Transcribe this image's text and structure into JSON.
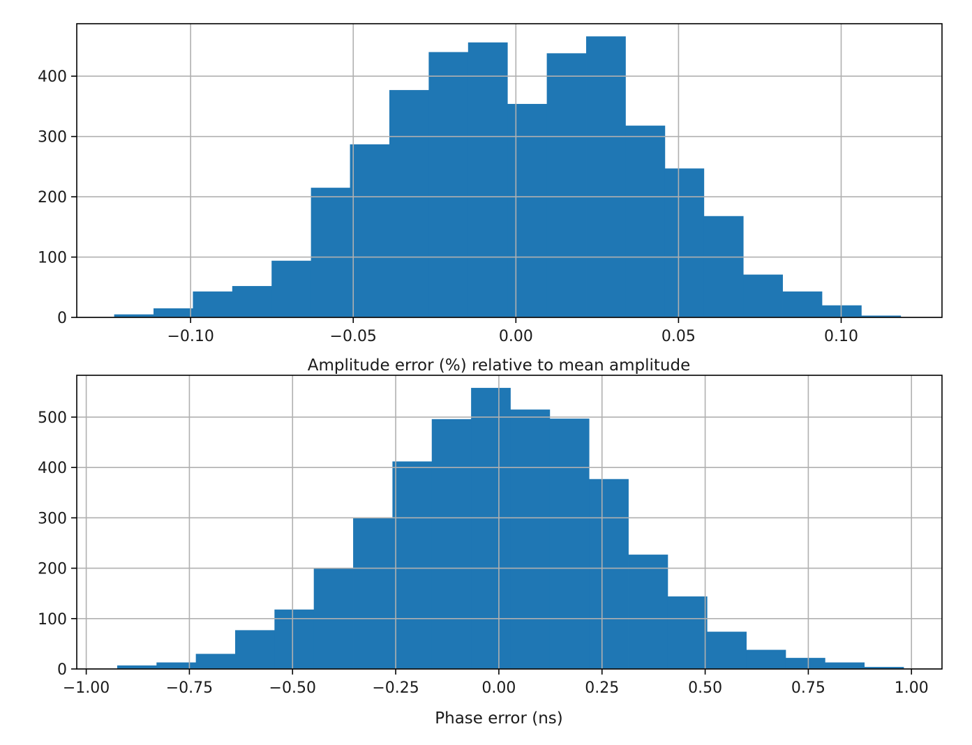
{
  "chart_data": [
    {
      "type": "bar",
      "subtype": "histogram",
      "color": "#1f77b4",
      "title": "",
      "xlabel": "Amplitude error (%) relative to mean amplitude",
      "ylabel": "",
      "xlim": [
        -0.135,
        0.131
      ],
      "ylim": [
        0,
        487
      ],
      "grid": true,
      "xticks": [
        -0.1,
        -0.05,
        0.0,
        0.05,
        0.1
      ],
      "xtick_labels": [
        "−0.10",
        "−0.05",
        "0.00",
        "0.05",
        "0.10"
      ],
      "yticks": [
        0,
        100,
        200,
        300,
        400
      ],
      "ytick_labels": [
        "0",
        "100",
        "200",
        "300",
        "400"
      ],
      "bin_edges": [
        -0.1235,
        -0.1114,
        -0.0993,
        -0.0872,
        -0.0751,
        -0.063,
        -0.051,
        -0.0389,
        -0.0268,
        -0.0147,
        -0.0026,
        0.0095,
        0.0216,
        0.0337,
        0.0458,
        0.0578,
        0.0699,
        0.082,
        0.0941,
        0.1062,
        0.1183
      ],
      "values": [
        5,
        15,
        43,
        52,
        94,
        215,
        287,
        377,
        440,
        456,
        354,
        438,
        466,
        318,
        247,
        168,
        71,
        43,
        20,
        3
      ]
    },
    {
      "type": "bar",
      "subtype": "histogram",
      "color": "#1f77b4",
      "title": "",
      "xlabel": "Phase error (ns)",
      "ylabel": "",
      "xlim": [
        -1.023,
        1.074
      ],
      "ylim": [
        0,
        583
      ],
      "grid": true,
      "xticks": [
        -1.0,
        -0.75,
        -0.5,
        -0.25,
        0.0,
        0.25,
        0.5,
        0.75,
        1.0
      ],
      "xtick_labels": [
        "−1.00",
        "−0.75",
        "−0.50",
        "−0.25",
        "0.00",
        "0.25",
        "0.50",
        "0.75",
        "1.00"
      ],
      "yticks": [
        0,
        100,
        200,
        300,
        400,
        500
      ],
      "ytick_labels": [
        "0",
        "100",
        "200",
        "300",
        "400",
        "500"
      ],
      "bin_edges": [
        -0.925,
        -0.8297,
        -0.7344,
        -0.6391,
        -0.5438,
        -0.4485,
        -0.3532,
        -0.2579,
        -0.1626,
        -0.0673,
        0.028,
        0.1233,
        0.2186,
        0.3139,
        0.4092,
        0.5045,
        0.5998,
        0.6951,
        0.7904,
        0.8857,
        0.981
      ],
      "values": [
        7,
        13,
        30,
        77,
        118,
        200,
        300,
        412,
        496,
        558,
        515,
        497,
        377,
        227,
        144,
        74,
        38,
        22,
        13,
        4
      ]
    }
  ]
}
